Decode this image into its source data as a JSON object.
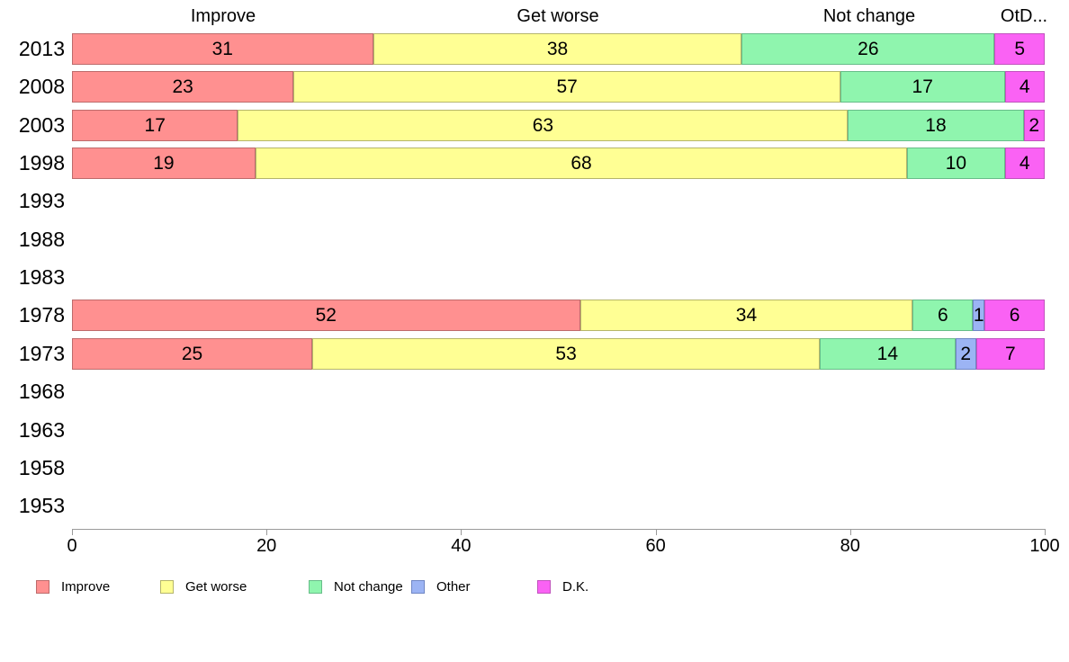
{
  "chart_data": {
    "type": "bar",
    "orientation": "horizontal",
    "stacked": true,
    "normalized": true,
    "title": "",
    "xlabel": "",
    "ylabel": "",
    "x_axis": {
      "range": [
        0,
        100
      ],
      "ticks": [
        0,
        20,
        40,
        60,
        80,
        100
      ]
    },
    "column_headers": [
      "Improve",
      "Get worse",
      "Not change",
      "OtD..."
    ],
    "series": [
      {
        "name": "Improve",
        "color": "#ff9090",
        "border": "#bd6b6b"
      },
      {
        "name": "Get worse",
        "color": "#ffff94",
        "border": "#b5b56b"
      },
      {
        "name": "Not change",
        "color": "#8ff5ae",
        "border": "#67bd89"
      },
      {
        "name": "Other",
        "color": "#9cb4f4",
        "border": "#6f86c4"
      },
      {
        "name": "D.K.",
        "color": "#fa62f4",
        "border": "#c153bd"
      }
    ],
    "categories": [
      "2013",
      "2008",
      "2003",
      "1998",
      "1993",
      "1988",
      "1983",
      "1978",
      "1973",
      "1968",
      "1963",
      "1958",
      "1953"
    ],
    "rows": [
      {
        "year": "2013",
        "values": [
          31,
          38,
          26,
          0,
          5
        ]
      },
      {
        "year": "2008",
        "values": [
          23,
          57,
          17,
          0,
          4
        ]
      },
      {
        "year": "2003",
        "values": [
          17,
          63,
          18,
          0,
          2
        ]
      },
      {
        "year": "1998",
        "values": [
          19,
          68,
          10,
          0,
          4
        ]
      },
      {
        "year": "1993",
        "values": null
      },
      {
        "year": "1988",
        "values": null
      },
      {
        "year": "1983",
        "values": null
      },
      {
        "year": "1978",
        "values": [
          52,
          34,
          6,
          1,
          6
        ]
      },
      {
        "year": "1973",
        "values": [
          25,
          53,
          14,
          2,
          7
        ]
      },
      {
        "year": "1968",
        "values": null
      },
      {
        "year": "1963",
        "values": null
      },
      {
        "year": "1958",
        "values": null
      },
      {
        "year": "1953",
        "values": null
      }
    ],
    "legend": [
      "Improve",
      "Get worse",
      "Not change",
      "Other",
      "D.K."
    ],
    "legend_position": "bottom"
  }
}
